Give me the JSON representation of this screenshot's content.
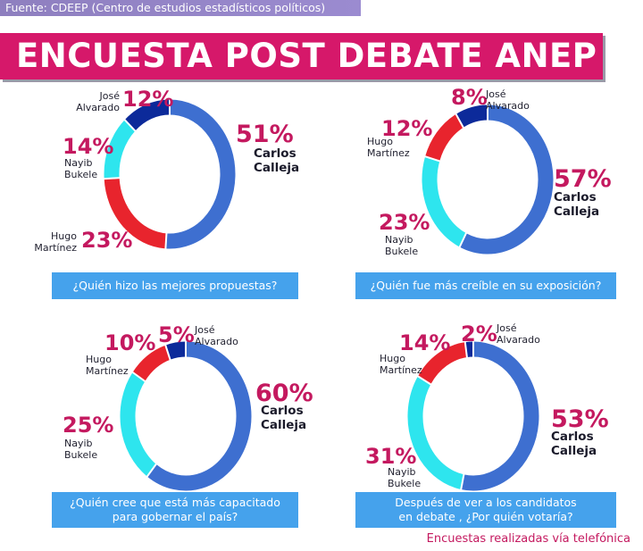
{
  "header": {
    "source": "Fuente: CDEEP (Centro de estudios estadísticos políticos)",
    "title": "ENCUESTA POST DEBATE ANEP"
  },
  "colors": {
    "carlos_calleja": "#3e6fd0",
    "nayib_bukele": "#2ee5ee",
    "hugo_martinez": "#e8242d",
    "jose_alvarado": "#0c2a9a",
    "accent": "#d6186a",
    "question_bg": "#45a2ec"
  },
  "chart_data": [
    {
      "type": "pie",
      "question": "¿Quién hizo las mejores propuestas?",
      "slices": [
        {
          "pct_label": "51%",
          "name_line1": "Carlos",
          "name_line2": "Calleja",
          "value": 51,
          "color": "#3e6fd0"
        },
        {
          "pct_label": "23%",
          "name_line1": "Hugo",
          "name_line2": "Martínez",
          "value": 23,
          "color": "#e8242d"
        },
        {
          "pct_label": "14%",
          "name_line1": "Nayib",
          "name_line2": "Bukele",
          "value": 14,
          "color": "#2ee5ee"
        },
        {
          "pct_label": "12%",
          "name_line1": "José",
          "name_line2": "Alvarado",
          "value": 12,
          "color": "#0c2a9a"
        }
      ]
    },
    {
      "type": "pie",
      "question": "¿Quién fue más creíble en su exposición?",
      "slices": [
        {
          "pct_label": "57%",
          "name_line1": "Carlos",
          "name_line2": "Calleja",
          "value": 57,
          "color": "#3e6fd0"
        },
        {
          "pct_label": "23%",
          "name_line1": "Nayib",
          "name_line2": "Bukele",
          "value": 23,
          "color": "#2ee5ee"
        },
        {
          "pct_label": "12%",
          "name_line1": "Hugo",
          "name_line2": "Martínez",
          "value": 12,
          "color": "#e8242d"
        },
        {
          "pct_label": "8%",
          "name_line1": "José",
          "name_line2": "Alvarado",
          "value": 8,
          "color": "#0c2a9a"
        }
      ]
    },
    {
      "type": "pie",
      "question_line1": "¿Quién cree que está más capacitado",
      "question_line2": "para gobernar el país?",
      "slices": [
        {
          "pct_label": "60%",
          "name_line1": "Carlos",
          "name_line2": "Calleja",
          "value": 60,
          "color": "#3e6fd0"
        },
        {
          "pct_label": "25%",
          "name_line1": "Nayib",
          "name_line2": "Bukele",
          "value": 25,
          "color": "#2ee5ee"
        },
        {
          "pct_label": "10%",
          "name_line1": "Hugo",
          "name_line2": "Martínez",
          "value": 10,
          "color": "#e8242d"
        },
        {
          "pct_label": "5%",
          "name_line1": "José",
          "name_line2": "Alvarado",
          "value": 5,
          "color": "#0c2a9a"
        }
      ]
    },
    {
      "type": "pie",
      "question_line1": "Después de ver a los candidatos",
      "question_line2": "en debate , ¿Por quién votaría?",
      "slices": [
        {
          "pct_label": "53%",
          "name_line1": "Carlos",
          "name_line2": "Calleja",
          "value": 53,
          "color": "#3e6fd0"
        },
        {
          "pct_label": "31%",
          "name_line1": "Nayib",
          "name_line2": "Bukele",
          "value": 31,
          "color": "#2ee5ee"
        },
        {
          "pct_label": "14%",
          "name_line1": "Hugo",
          "name_line2": "Martínez",
          "value": 14,
          "color": "#e8242d"
        },
        {
          "pct_label": "2%",
          "name_line1": "José",
          "name_line2": "Alvarado",
          "value": 2,
          "color": "#0c2a9a"
        }
      ]
    }
  ],
  "footer": "Encuestas realizadas vía telefónica"
}
